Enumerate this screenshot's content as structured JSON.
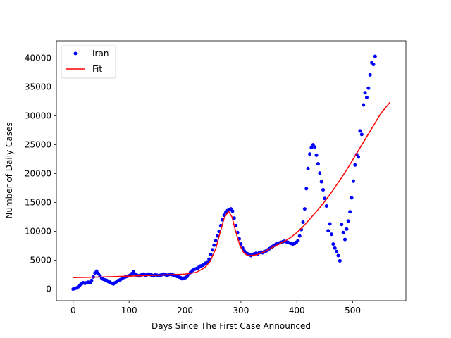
{
  "chart_data": {
    "type": "scatter",
    "title": "",
    "xlabel": "Days Since The First Case Announced",
    "ylabel": "Number of Daily Cases",
    "xlim": [
      -30,
      595
    ],
    "ylim": [
      -2000,
      43000
    ],
    "xticks": [
      0,
      100,
      200,
      300,
      400,
      500
    ],
    "yticks": [
      0,
      5000,
      10000,
      15000,
      20000,
      25000,
      30000,
      35000,
      40000
    ],
    "grid": false,
    "legend_position": "top-left",
    "series": [
      {
        "name": "Iran",
        "kind": "markers",
        "color": "#0000ff",
        "points": [
          [
            0,
            0
          ],
          [
            3,
            100
          ],
          [
            6,
            200
          ],
          [
            9,
            400
          ],
          [
            12,
            700
          ],
          [
            15,
            900
          ],
          [
            18,
            1100
          ],
          [
            21,
            1000
          ],
          [
            24,
            1100
          ],
          [
            27,
            1200
          ],
          [
            30,
            1100
          ],
          [
            33,
            1500
          ],
          [
            36,
            2100
          ],
          [
            39,
            2800
          ],
          [
            42,
            3100
          ],
          [
            45,
            2700
          ],
          [
            48,
            2300
          ],
          [
            51,
            1900
          ],
          [
            54,
            1700
          ],
          [
            57,
            1600
          ],
          [
            60,
            1500
          ],
          [
            63,
            1300
          ],
          [
            66,
            1200
          ],
          [
            69,
            1000
          ],
          [
            72,
            900
          ],
          [
            75,
            1100
          ],
          [
            78,
            1300
          ],
          [
            81,
            1500
          ],
          [
            84,
            1600
          ],
          [
            87,
            1800
          ],
          [
            90,
            2000
          ],
          [
            93,
            2100
          ],
          [
            96,
            2200
          ],
          [
            99,
            2300
          ],
          [
            102,
            2400
          ],
          [
            105,
            2700
          ],
          [
            108,
            3000
          ],
          [
            111,
            2600
          ],
          [
            114,
            2400
          ],
          [
            117,
            2300
          ],
          [
            120,
            2400
          ],
          [
            123,
            2500
          ],
          [
            126,
            2600
          ],
          [
            129,
            2400
          ],
          [
            132,
            2500
          ],
          [
            135,
            2600
          ],
          [
            138,
            2500
          ],
          [
            141,
            2400
          ],
          [
            144,
            2300
          ],
          [
            147,
            2500
          ],
          [
            150,
            2400
          ],
          [
            153,
            2300
          ],
          [
            156,
            2400
          ],
          [
            159,
            2500
          ],
          [
            162,
            2600
          ],
          [
            165,
            2500
          ],
          [
            168,
            2400
          ],
          [
            171,
            2500
          ],
          [
            174,
            2600
          ],
          [
            177,
            2500
          ],
          [
            180,
            2400
          ],
          [
            183,
            2300
          ],
          [
            186,
            2200
          ],
          [
            189,
            2100
          ],
          [
            192,
            2000
          ],
          [
            195,
            1800
          ],
          [
            198,
            1900
          ],
          [
            201,
            2000
          ],
          [
            204,
            2200
          ],
          [
            207,
            2600
          ],
          [
            210,
            2900
          ],
          [
            213,
            3200
          ],
          [
            216,
            3400
          ],
          [
            219,
            3500
          ],
          [
            222,
            3600
          ],
          [
            225,
            3800
          ],
          [
            228,
            4000
          ],
          [
            231,
            4100
          ],
          [
            234,
            4300
          ],
          [
            237,
            4500
          ],
          [
            240,
            4700
          ],
          [
            243,
            5200
          ],
          [
            246,
            6000
          ],
          [
            249,
            6800
          ],
          [
            252,
            7600
          ],
          [
            255,
            8400
          ],
          [
            258,
            9200
          ],
          [
            261,
            10000
          ],
          [
            264,
            11000
          ],
          [
            267,
            12000
          ],
          [
            270,
            12800
          ],
          [
            273,
            13300
          ],
          [
            276,
            13600
          ],
          [
            279,
            13800
          ],
          [
            282,
            13900
          ],
          [
            285,
            13500
          ],
          [
            288,
            12300
          ],
          [
            291,
            11000
          ],
          [
            294,
            9800
          ],
          [
            297,
            8700
          ],
          [
            300,
            7800
          ],
          [
            303,
            7100
          ],
          [
            306,
            6600
          ],
          [
            309,
            6300
          ],
          [
            312,
            6100
          ],
          [
            315,
            6000
          ],
          [
            318,
            5800
          ],
          [
            321,
            6000
          ],
          [
            324,
            6100
          ],
          [
            327,
            6200
          ],
          [
            330,
            6100
          ],
          [
            333,
            6300
          ],
          [
            336,
            6400
          ],
          [
            339,
            6300
          ],
          [
            342,
            6500
          ],
          [
            345,
            6600
          ],
          [
            348,
            6800
          ],
          [
            351,
            7000
          ],
          [
            354,
            7200
          ],
          [
            357,
            7400
          ],
          [
            360,
            7600
          ],
          [
            363,
            7800
          ],
          [
            366,
            7900
          ],
          [
            369,
            8000
          ],
          [
            372,
            8100
          ],
          [
            375,
            8200
          ],
          [
            378,
            8300
          ],
          [
            381,
            8200
          ],
          [
            384,
            8100
          ],
          [
            387,
            8000
          ],
          [
            390,
            7900
          ],
          [
            393,
            7800
          ],
          [
            396,
            7900
          ],
          [
            399,
            8100
          ],
          [
            402,
            8400
          ],
          [
            405,
            9200
          ],
          [
            408,
            10300
          ],
          [
            411,
            11600
          ],
          [
            414,
            13900
          ],
          [
            417,
            17400
          ],
          [
            420,
            20900
          ],
          [
            423,
            23400
          ],
          [
            426,
            24500
          ],
          [
            429,
            25000
          ],
          [
            432,
            24600
          ],
          [
            435,
            23200
          ],
          [
            438,
            21700
          ],
          [
            441,
            20100
          ],
          [
            444,
            18600
          ],
          [
            447,
            17200
          ],
          [
            450,
            15700
          ],
          [
            453,
            14400
          ],
          [
            456,
            10100
          ],
          [
            459,
            11300
          ],
          [
            462,
            9500
          ],
          [
            465,
            7800
          ],
          [
            468,
            7100
          ],
          [
            471,
            6500
          ],
          [
            474,
            5800
          ],
          [
            477,
            4900
          ],
          [
            480,
            11200
          ],
          [
            483,
            9800
          ],
          [
            486,
            8600
          ],
          [
            489,
            10400
          ],
          [
            492,
            11800
          ],
          [
            495,
            13400
          ],
          [
            498,
            15800
          ],
          [
            501,
            18700
          ],
          [
            504,
            21500
          ],
          [
            507,
            23300
          ],
          [
            510,
            22900
          ],
          [
            513,
            27400
          ],
          [
            516,
            26800
          ],
          [
            519,
            31900
          ],
          [
            522,
            34000
          ],
          [
            525,
            33200
          ],
          [
            528,
            34800
          ],
          [
            531,
            37100
          ],
          [
            534,
            39200
          ],
          [
            537,
            38900
          ],
          [
            540,
            40300
          ]
        ]
      },
      {
        "name": "Fit",
        "kind": "line",
        "color": "#ff0000",
        "points": [
          [
            0,
            2000
          ],
          [
            50,
            2100
          ],
          [
            100,
            2250
          ],
          [
            150,
            2400
          ],
          [
            200,
            2600
          ],
          [
            220,
            2900
          ],
          [
            235,
            3700
          ],
          [
            245,
            4800
          ],
          [
            255,
            7000
          ],
          [
            262,
            9500
          ],
          [
            270,
            12300
          ],
          [
            278,
            13500
          ],
          [
            284,
            12500
          ],
          [
            290,
            10200
          ],
          [
            298,
            7600
          ],
          [
            305,
            6300
          ],
          [
            312,
            5800
          ],
          [
            320,
            5800
          ],
          [
            330,
            6000
          ],
          [
            340,
            6400
          ],
          [
            350,
            6900
          ],
          [
            360,
            7400
          ],
          [
            370,
            7900
          ],
          [
            380,
            8400
          ],
          [
            390,
            9000
          ],
          [
            400,
            9800
          ],
          [
            410,
            10700
          ],
          [
            420,
            11800
          ],
          [
            430,
            12900
          ],
          [
            440,
            14000
          ],
          [
            450,
            15200
          ],
          [
            460,
            16500
          ],
          [
            470,
            17900
          ],
          [
            480,
            19300
          ],
          [
            490,
            20800
          ],
          [
            500,
            22400
          ],
          [
            510,
            24000
          ],
          [
            520,
            25600
          ],
          [
            530,
            27200
          ],
          [
            540,
            28800
          ],
          [
            550,
            30400
          ],
          [
            560,
            31600
          ],
          [
            567,
            32400
          ]
        ]
      }
    ]
  }
}
